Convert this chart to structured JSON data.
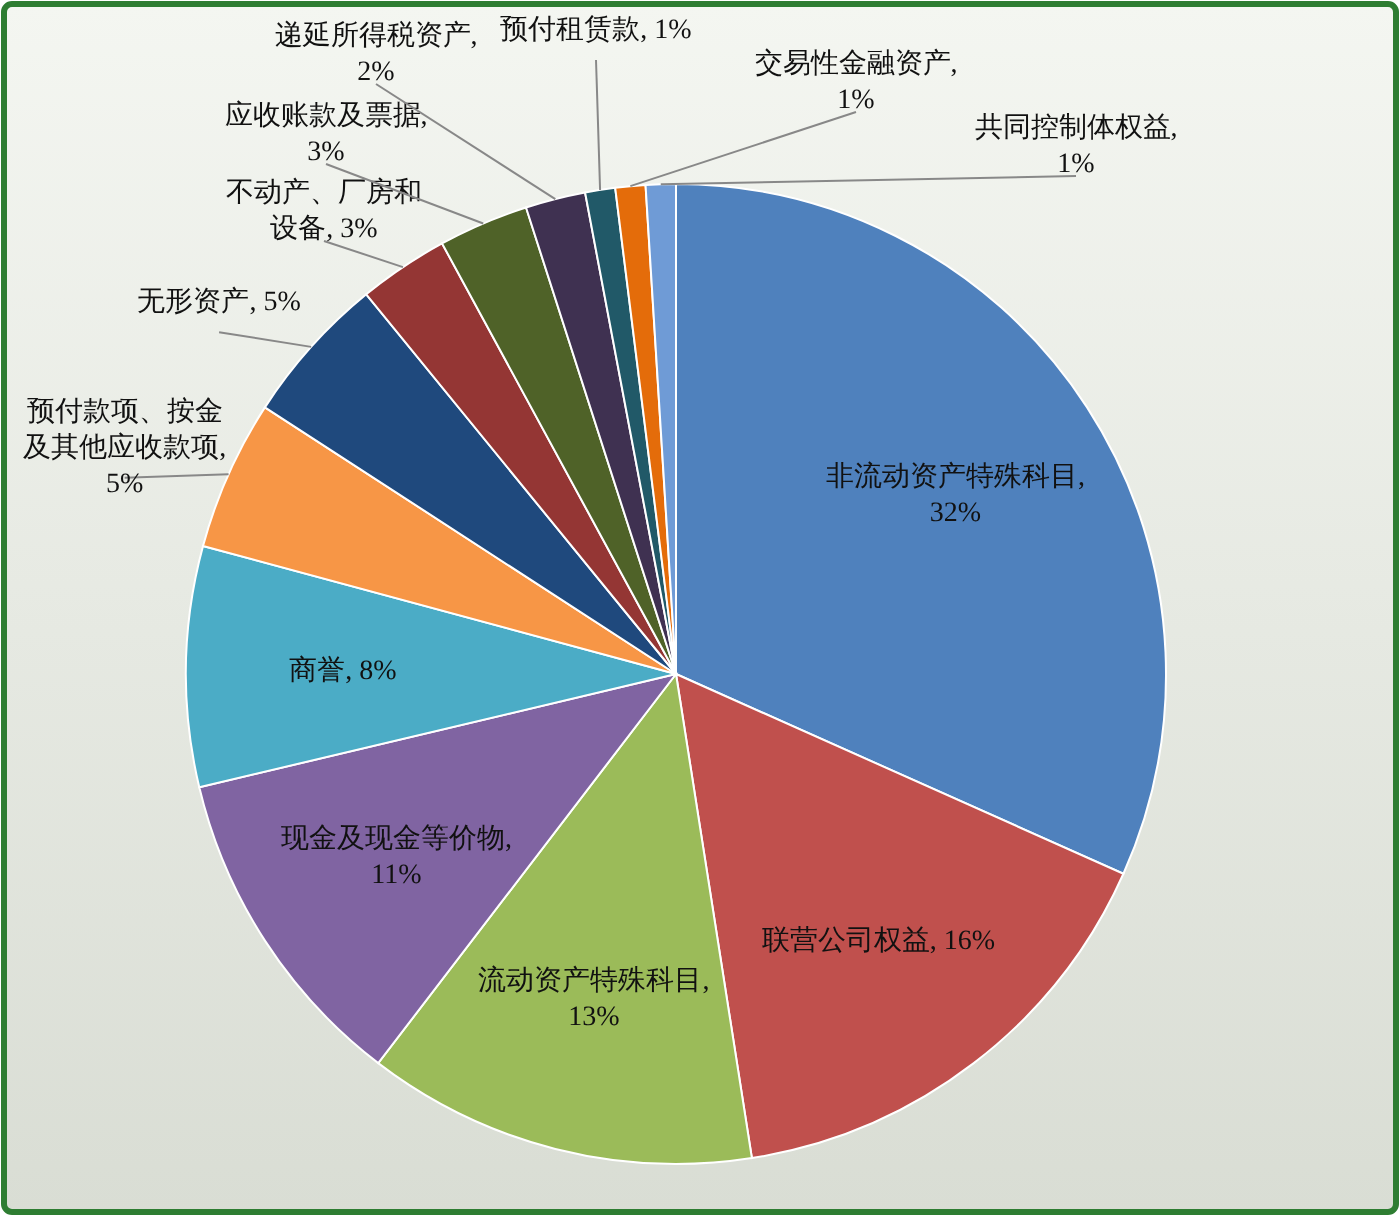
{
  "chart_data": {
    "type": "pie",
    "categories": [
      "非流动资产特殊科目",
      "联营公司权益",
      "流动资产特殊科目",
      "现金及现金等价物",
      "商誉",
      "预付款项、按金及其他应收款项",
      "无形资产",
      "不动产、厂房和设备",
      "应收账款及票据",
      "递延所得税资产",
      "预付租赁款",
      "交易性金融资产",
      "共同控制体权益"
    ],
    "values": [
      32,
      16,
      13,
      11,
      8,
      5,
      5,
      3,
      3,
      2,
      1,
      1,
      1
    ],
    "value_labels": [
      ", 32%",
      ", 16%",
      ", 13%",
      ", 11%",
      ", 8%",
      ", 5%",
      ", 5%",
      ", 3%",
      ", 3%",
      ", 2%",
      ", 1%",
      ", 1%",
      ", 1%"
    ],
    "colors": [
      "#4f81bd",
      "#c0504d",
      "#9bbb59",
      "#8064a2",
      "#4bacc6",
      "#f79646",
      "#1f497d",
      "#943634",
      "#4f6228",
      "#3f3151",
      "#215968",
      "#e46c0a",
      "#6f9bd6"
    ],
    "legend": false
  }
}
